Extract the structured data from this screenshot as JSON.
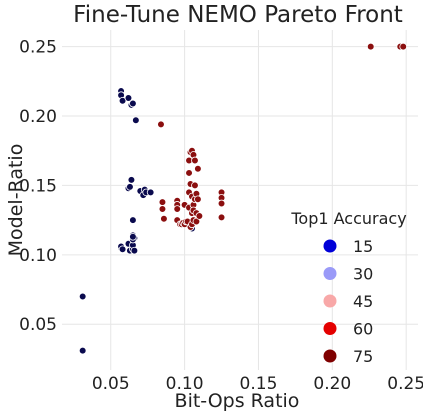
{
  "chart_data": {
    "type": "scatter",
    "title": "Fine-Tune NEMO Pareto Front",
    "xlabel": "Bit-Ops Ratio",
    "ylabel": "Model-Ratio",
    "xlim": [
      0.017,
      0.258
    ],
    "ylim": [
      0.017,
      0.262
    ],
    "x_ticks": [
      0.05,
      0.1,
      0.15,
      0.2,
      0.25
    ],
    "x_tick_labels": [
      "0.05",
      "0.10",
      "0.15",
      "0.20",
      "0.25"
    ],
    "y_ticks": [
      0.05,
      0.1,
      0.15,
      0.2,
      0.25
    ],
    "y_tick_labels": [
      "0.05",
      "0.10",
      "0.15",
      "0.20",
      "0.25"
    ],
    "grid": true,
    "legend": {
      "title": "Top1 Accuracy",
      "placement": "lower-right",
      "entries": [
        {
          "label": "15",
          "color": "#0000d8"
        },
        {
          "label": "30",
          "color": "#9a9af8"
        },
        {
          "label": "45",
          "color": "#f8a8a8"
        },
        {
          "label": "60",
          "color": "#e40000"
        },
        {
          "label": "75",
          "color": "#7f0000"
        }
      ]
    },
    "series": [
      {
        "color": "#0a0a4e",
        "x": [
          0.031,
          0.031,
          0.057,
          0.057,
          0.058,
          0.062,
          0.062,
          0.063,
          0.064,
          0.064,
          0.065,
          0.065,
          0.065,
          0.066,
          0.067,
          0.057,
          0.057,
          0.058,
          0.062,
          0.063,
          0.065,
          0.065,
          0.065,
          0.065,
          0.066,
          0.07,
          0.072,
          0.073,
          0.074,
          0.077,
          0.105
        ],
        "y": [
          0.07,
          0.031,
          0.218,
          0.215,
          0.211,
          0.213,
          0.148,
          0.149,
          0.154,
          0.208,
          0.209,
          0.125,
          0.114,
          0.112,
          0.197,
          0.105,
          0.106,
          0.104,
          0.108,
          0.103,
          0.104,
          0.107,
          0.111,
          0.113,
          0.103,
          0.146,
          0.143,
          0.147,
          0.145,
          0.145,
          0.119
        ]
      },
      {
        "color": "#8b0f0f",
        "x": [
          0.226,
          0.246,
          0.248,
          0.084,
          0.085,
          0.085,
          0.086,
          0.095,
          0.095,
          0.095,
          0.095,
          0.097,
          0.098,
          0.099,
          0.1,
          0.1,
          0.101,
          0.102,
          0.103,
          0.103,
          0.103,
          0.103,
          0.104,
          0.104,
          0.104,
          0.105,
          0.105,
          0.105,
          0.105,
          0.106,
          0.106,
          0.106,
          0.106,
          0.107,
          0.107,
          0.107,
          0.108,
          0.108,
          0.108,
          0.109,
          0.109,
          0.11,
          0.125,
          0.125,
          0.125,
          0.125
        ],
        "y": [
          0.25,
          0.25,
          0.25,
          0.194,
          0.138,
          0.133,
          0.126,
          0.139,
          0.136,
          0.133,
          0.125,
          0.122,
          0.122,
          0.123,
          0.136,
          0.122,
          0.124,
          0.124,
          0.168,
          0.159,
          0.145,
          0.134,
          0.174,
          0.151,
          0.12,
          0.175,
          0.142,
          0.13,
          0.122,
          0.172,
          0.136,
          0.132,
          0.125,
          0.168,
          0.15,
          0.14,
          0.144,
          0.13,
          0.124,
          0.162,
          0.14,
          0.128,
          0.145,
          0.141,
          0.137,
          0.127
        ]
      }
    ]
  }
}
